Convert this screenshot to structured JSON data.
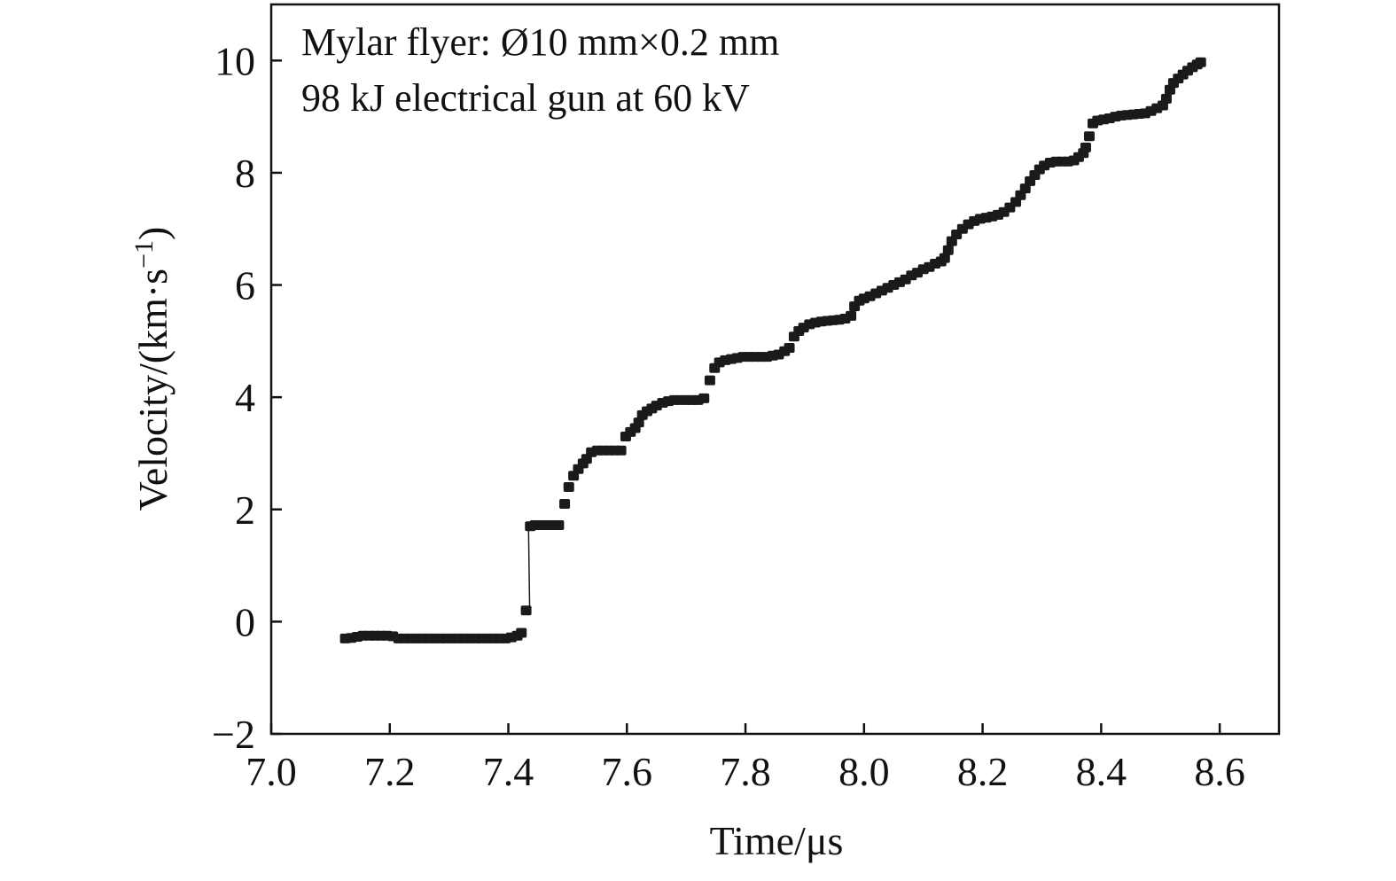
{
  "chart_data": {
    "type": "scatter",
    "title": "",
    "xlabel": "Time/μs",
    "ylabel": "Velocity/(km·s⁻¹)",
    "ylabel_parts": {
      "base": "Velocity/(km·s",
      "sup": "−1",
      "close": ")"
    },
    "xlim": [
      7.0,
      8.7
    ],
    "ylim": [
      -2,
      11
    ],
    "x_ticks": [
      7.0,
      7.2,
      7.4,
      7.6,
      7.8,
      8.0,
      8.2,
      8.4,
      8.6
    ],
    "x_tick_labels": [
      "7.0",
      "7.2",
      "7.4",
      "7.6",
      "7.8",
      "8.0",
      "8.2",
      "8.4",
      "8.6"
    ],
    "y_ticks": [
      -2,
      0,
      2,
      4,
      6,
      8,
      10
    ],
    "y_tick_labels": [
      "−2",
      "0",
      "2",
      "4",
      "6",
      "8",
      "10"
    ],
    "grid": false,
    "legend": false,
    "marker_color": "#1a1a1a",
    "annotations": [
      "Mylar flyer: Ø10 mm×0.2 mm",
      "98 kJ electrical gun at 60 kV"
    ],
    "series": [
      {
        "points": [
          [
            7.125,
            -0.3
          ],
          [
            7.135,
            -0.29
          ],
          [
            7.145,
            -0.27
          ],
          [
            7.155,
            -0.25
          ],
          [
            7.165,
            -0.25
          ],
          [
            7.175,
            -0.25
          ],
          [
            7.185,
            -0.25
          ],
          [
            7.195,
            -0.25
          ],
          [
            7.205,
            -0.26
          ],
          [
            7.215,
            -0.3
          ],
          [
            7.225,
            -0.3
          ],
          [
            7.235,
            -0.3
          ],
          [
            7.245,
            -0.3
          ],
          [
            7.255,
            -0.3
          ],
          [
            7.265,
            -0.3
          ],
          [
            7.275,
            -0.3
          ],
          [
            7.285,
            -0.3
          ],
          [
            7.295,
            -0.3
          ],
          [
            7.305,
            -0.3
          ],
          [
            7.315,
            -0.3
          ],
          [
            7.325,
            -0.3
          ],
          [
            7.335,
            -0.3
          ],
          [
            7.345,
            -0.3
          ],
          [
            7.355,
            -0.3
          ],
          [
            7.365,
            -0.3
          ],
          [
            7.375,
            -0.3
          ],
          [
            7.385,
            -0.3
          ],
          [
            7.395,
            -0.3
          ],
          [
            7.405,
            -0.28
          ],
          [
            7.415,
            -0.25
          ],
          [
            7.422,
            -0.2
          ],
          [
            7.43,
            0.2
          ],
          [
            7.437,
            1.7
          ],
          [
            7.445,
            1.72
          ],
          [
            7.455,
            1.72
          ],
          [
            7.465,
            1.72
          ],
          [
            7.475,
            1.72
          ],
          [
            7.485,
            1.72
          ],
          [
            7.495,
            2.1
          ],
          [
            7.502,
            2.4
          ],
          [
            7.51,
            2.6
          ],
          [
            7.518,
            2.72
          ],
          [
            7.526,
            2.82
          ],
          [
            7.532,
            2.9
          ],
          [
            7.54,
            3.02
          ],
          [
            7.55,
            3.05
          ],
          [
            7.56,
            3.05
          ],
          [
            7.57,
            3.05
          ],
          [
            7.58,
            3.05
          ],
          [
            7.59,
            3.05
          ],
          [
            7.598,
            3.3
          ],
          [
            7.606,
            3.38
          ],
          [
            7.614,
            3.45
          ],
          [
            7.62,
            3.55
          ],
          [
            7.626,
            3.68
          ],
          [
            7.634,
            3.75
          ],
          [
            7.642,
            3.8
          ],
          [
            7.65,
            3.85
          ],
          [
            7.66,
            3.9
          ],
          [
            7.67,
            3.93
          ],
          [
            7.68,
            3.95
          ],
          [
            7.69,
            3.95
          ],
          [
            7.7,
            3.95
          ],
          [
            7.71,
            3.95
          ],
          [
            7.72,
            3.95
          ],
          [
            7.73,
            3.98
          ],
          [
            7.74,
            4.3
          ],
          [
            7.748,
            4.52
          ],
          [
            7.756,
            4.62
          ],
          [
            7.766,
            4.66
          ],
          [
            7.776,
            4.68
          ],
          [
            7.786,
            4.7
          ],
          [
            7.796,
            4.72
          ],
          [
            7.806,
            4.72
          ],
          [
            7.816,
            4.72
          ],
          [
            7.826,
            4.72
          ],
          [
            7.836,
            4.72
          ],
          [
            7.846,
            4.74
          ],
          [
            7.856,
            4.76
          ],
          [
            7.866,
            4.82
          ],
          [
            7.874,
            4.88
          ],
          [
            7.882,
            5.08
          ],
          [
            7.89,
            5.18
          ],
          [
            7.898,
            5.24
          ],
          [
            7.908,
            5.3
          ],
          [
            7.918,
            5.33
          ],
          [
            7.928,
            5.35
          ],
          [
            7.938,
            5.36
          ],
          [
            7.948,
            5.37
          ],
          [
            7.958,
            5.38
          ],
          [
            7.968,
            5.4
          ],
          [
            7.978,
            5.45
          ],
          [
            7.984,
            5.62
          ],
          [
            7.992,
            5.72
          ],
          [
            8.0,
            5.76
          ],
          [
            8.01,
            5.8
          ],
          [
            8.02,
            5.85
          ],
          [
            8.03,
            5.9
          ],
          [
            8.04,
            5.95
          ],
          [
            8.05,
            6.0
          ],
          [
            8.06,
            6.05
          ],
          [
            8.07,
            6.1
          ],
          [
            8.08,
            6.17
          ],
          [
            8.09,
            6.22
          ],
          [
            8.1,
            6.28
          ],
          [
            8.11,
            6.32
          ],
          [
            8.12,
            6.38
          ],
          [
            8.13,
            6.42
          ],
          [
            8.136,
            6.48
          ],
          [
            8.142,
            6.62
          ],
          [
            8.148,
            6.78
          ],
          [
            8.156,
            6.9
          ],
          [
            8.166,
            7.0
          ],
          [
            8.176,
            7.08
          ],
          [
            8.186,
            7.14
          ],
          [
            8.196,
            7.18
          ],
          [
            8.206,
            7.2
          ],
          [
            8.216,
            7.22
          ],
          [
            8.226,
            7.25
          ],
          [
            8.236,
            7.3
          ],
          [
            8.246,
            7.38
          ],
          [
            8.256,
            7.48
          ],
          [
            8.264,
            7.6
          ],
          [
            8.272,
            7.72
          ],
          [
            8.28,
            7.85
          ],
          [
            8.288,
            7.96
          ],
          [
            8.296,
            8.06
          ],
          [
            8.304,
            8.13
          ],
          [
            8.314,
            8.18
          ],
          [
            8.324,
            8.2
          ],
          [
            8.334,
            8.2
          ],
          [
            8.344,
            8.2
          ],
          [
            8.354,
            8.22
          ],
          [
            8.362,
            8.28
          ],
          [
            8.37,
            8.35
          ],
          [
            8.374,
            8.45
          ],
          [
            8.38,
            8.65
          ],
          [
            8.386,
            8.88
          ],
          [
            8.394,
            8.93
          ],
          [
            8.404,
            8.95
          ],
          [
            8.414,
            8.97
          ],
          [
            8.424,
            9.0
          ],
          [
            8.434,
            9.02
          ],
          [
            8.444,
            9.03
          ],
          [
            8.454,
            9.04
          ],
          [
            8.464,
            9.05
          ],
          [
            8.474,
            9.06
          ],
          [
            8.484,
            9.1
          ],
          [
            8.494,
            9.15
          ],
          [
            8.504,
            9.2
          ],
          [
            8.51,
            9.32
          ],
          [
            8.516,
            9.48
          ],
          [
            8.522,
            9.6
          ],
          [
            8.53,
            9.68
          ],
          [
            8.538,
            9.75
          ],
          [
            8.546,
            9.82
          ],
          [
            8.554,
            9.88
          ],
          [
            8.562,
            9.93
          ],
          [
            8.568,
            9.97
          ]
        ]
      }
    ]
  }
}
